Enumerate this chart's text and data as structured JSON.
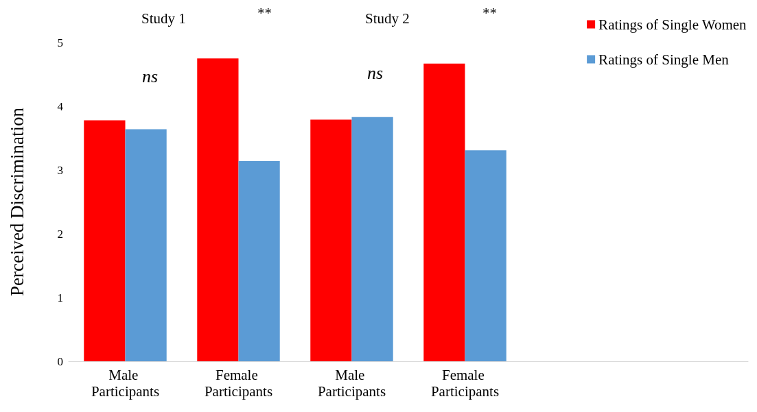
{
  "chart_data": {
    "type": "bar",
    "ylabel": "Perceived Discrimination",
    "categories": [
      "Male Participants",
      "Female Participants",
      "Male Participants",
      "Female Participants",
      null,
      null
    ],
    "series": [
      {
        "name": "Ratings of Single Women",
        "color": "#ff0000",
        "values": [
          3.78,
          4.75,
          3.79,
          4.67,
          null,
          null
        ]
      },
      {
        "name": "Ratings of Single Men",
        "color": "#5b9bd5",
        "values": [
          3.64,
          3.14,
          3.83,
          3.31,
          null,
          null
        ]
      }
    ],
    "ylim": [
      0,
      5
    ],
    "yticks": [
      0,
      1,
      2,
      3,
      4,
      5
    ],
    "grid": false,
    "legend": "top right",
    "annotations": [
      "Study 1",
      "**",
      "Study 2",
      "**",
      "ns",
      "ns"
    ]
  }
}
